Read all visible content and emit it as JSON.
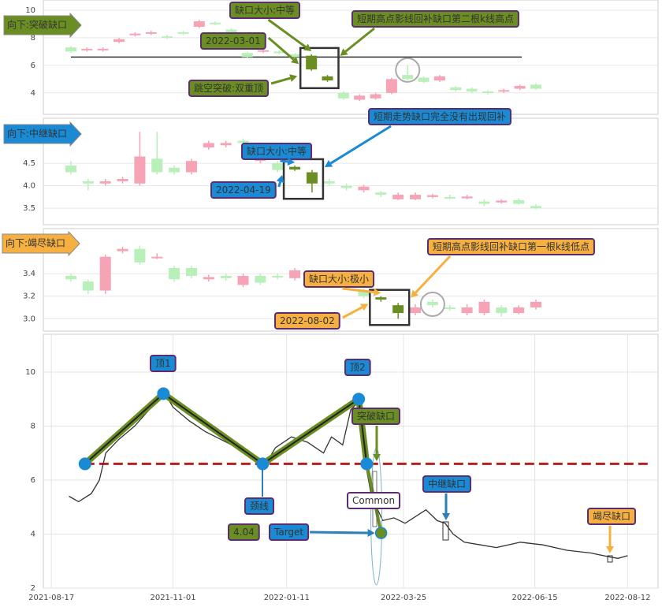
{
  "chart_data": [
    {
      "type": "candlestick",
      "label": "向下:突破缺口",
      "label_color": "#6b8e23",
      "open": [
        7.3,
        7.1,
        7.1,
        7.7,
        8.2,
        8.3,
        8.1,
        8.4,
        8.8,
        9.1,
        8.6,
        6.9,
        7.0,
        7.0,
        6.8,
        6.7,
        5.2,
        4.0,
        3.5,
        3.6,
        4.0,
        5.3,
        5.1,
        4.9,
        4.4,
        4.3,
        4.1,
        4.1,
        4.3,
        4.6
      ],
      "high": [
        7.4,
        7.3,
        7.3,
        8.0,
        8.4,
        8.5,
        8.2,
        8.5,
        9.3,
        9.2,
        8.7,
        7.0,
        7.2,
        7.1,
        6.9,
        6.8,
        5.3,
        4.1,
        3.9,
        4.0,
        5.1,
        6.0,
        5.2,
        5.3,
        4.5,
        4.4,
        4.2,
        4.3,
        4.6,
        4.7
      ],
      "low": [
        6.9,
        7.0,
        7.0,
        7.6,
        8.1,
        8.2,
        7.9,
        8.2,
        8.7,
        8.9,
        8.3,
        6.5,
        6.9,
        6.8,
        6.5,
        5.6,
        4.8,
        3.5,
        3.4,
        3.5,
        3.9,
        4.9,
        4.7,
        4.8,
        4.1,
        4.0,
        3.9,
        4.0,
        4.2,
        4.2
      ],
      "close": [
        7.0,
        7.2,
        7.2,
        7.9,
        8.3,
        8.4,
        8.0,
        8.3,
        9.2,
        9.0,
        8.4,
        6.6,
        7.1,
        6.9,
        6.6,
        5.7,
        4.9,
        3.6,
        3.8,
        3.9,
        5.0,
        5.0,
        4.8,
        5.2,
        4.2,
        4.1,
        4.0,
        4.2,
        4.5,
        4.3
      ],
      "up_color": "#f5a3b5",
      "down_color": "#b9f0b9",
      "gap_color": "#6b8e23",
      "gap_candles": [
        15,
        16
      ],
      "hline": 6.6,
      "ylim": [
        2.5,
        10
      ],
      "yticks": [
        4,
        6,
        8,
        10
      ],
      "annotations": {
        "gap_size": "缺口大小:中等",
        "gap_date": "2022-03-01",
        "pattern": "跳空突破:双重顶",
        "note": "短期高点影线回补缺口第二根k线高点"
      }
    },
    {
      "type": "candlestick",
      "label": "向下:中继缺口",
      "label_color": "#1a8ad4",
      "open": [
        4.45,
        4.1,
        4.05,
        4.1,
        4.05,
        4.6,
        4.4,
        4.3,
        4.85,
        4.9,
        5.0,
        4.55,
        4.5,
        4.42,
        4.3,
        4.1,
        4.0,
        3.9,
        3.85,
        3.7,
        3.7,
        3.75,
        3.75,
        3.72,
        3.65,
        3.63,
        3.68,
        3.55
      ],
      "high": [
        4.55,
        4.15,
        4.15,
        4.2,
        5.2,
        5.2,
        4.45,
        4.6,
        5.0,
        5.0,
        5.05,
        4.7,
        4.55,
        4.45,
        4.35,
        4.15,
        4.05,
        4.02,
        3.88,
        3.85,
        3.85,
        3.82,
        3.8,
        3.8,
        3.7,
        3.7,
        3.72,
        3.58
      ],
      "low": [
        4.25,
        3.9,
        4.0,
        4.05,
        4.0,
        4.25,
        4.25,
        4.25,
        4.8,
        4.85,
        4.9,
        4.5,
        4.3,
        4.33,
        3.85,
        4.0,
        3.9,
        3.85,
        3.75,
        3.68,
        3.68,
        3.72,
        3.7,
        3.7,
        3.55,
        3.6,
        3.58,
        3.48
      ],
      "close": [
        4.3,
        4.05,
        4.1,
        4.15,
        4.65,
        4.3,
        4.3,
        4.55,
        4.95,
        4.95,
        4.95,
        4.62,
        4.35,
        4.36,
        4.05,
        4.05,
        3.95,
        3.98,
        3.8,
        3.8,
        3.8,
        3.79,
        3.73,
        3.76,
        3.6,
        3.67,
        3.6,
        3.5
      ],
      "up_color": "#f5a3b5",
      "down_color": "#b9f0b9",
      "gap_color": "#6b8e23",
      "gap_candles": [
        13,
        14
      ],
      "ylim": [
        3.1,
        5.5
      ],
      "yticks": [
        3.5,
        {
          "value": 4,
          "label": "4.0"
        },
        4.5
      ],
      "annotations": {
        "gap_size": "缺口大小:中等",
        "gap_date": "2022-04-19",
        "note": "短期走势缺口完全没有出现回补"
      }
    },
    {
      "type": "candlestick",
      "label": "向下:竭尽缺口",
      "label_color": "#f5b041",
      "open": [
        3.38,
        3.33,
        3.25,
        3.6,
        3.62,
        3.55,
        3.45,
        3.45,
        3.35,
        3.38,
        3.3,
        3.38,
        3.38,
        3.36,
        3.42,
        3.36,
        3.4,
        3.25,
        3.19,
        3.12,
        3.05,
        3.15,
        3.1,
        3.05,
        3.05,
        3.1,
        3.05,
        3.1
      ],
      "high": [
        3.4,
        3.35,
        3.57,
        3.64,
        3.65,
        3.58,
        3.47,
        3.47,
        3.39,
        3.4,
        3.4,
        3.4,
        3.4,
        3.45,
        3.44,
        3.38,
        3.42,
        3.27,
        3.2,
        3.14,
        3.13,
        3.17,
        3.12,
        3.13,
        3.17,
        3.12,
        3.12,
        3.17
      ],
      "low": [
        3.33,
        3.22,
        3.22,
        3.58,
        3.48,
        3.53,
        3.33,
        3.36,
        3.33,
        3.34,
        3.28,
        3.3,
        3.35,
        3.34,
        3.33,
        3.32,
        3.36,
        3.18,
        3.15,
        3.0,
        3.03,
        3.1,
        3.07,
        3.03,
        3.03,
        3.02,
        3.04,
        3.08
      ],
      "close": [
        3.35,
        3.25,
        3.55,
        3.62,
        3.5,
        3.55,
        3.35,
        3.38,
        3.37,
        3.36,
        3.38,
        3.32,
        3.37,
        3.43,
        3.35,
        3.34,
        3.38,
        3.2,
        3.17,
        3.05,
        3.1,
        3.12,
        3.09,
        3.1,
        3.15,
        3.05,
        3.1,
        3.15
      ],
      "up_color": "#f5a3b5",
      "down_color": "#b9f0b9",
      "gap_color": "#6b8e23",
      "gap_candles": [
        18,
        19
      ],
      "ylim": [
        2.89,
        3.8
      ],
      "yticks": [
        {
          "value": 3,
          "label": "3.0"
        },
        3.2,
        3.4
      ],
      "annotations": {
        "gap_size": "缺口大小:极小",
        "gap_date": "2022-08-02",
        "note": "短期高点影线回补缺口第一根k线低点"
      }
    },
    {
      "type": "line",
      "color": "#333333",
      "x": [
        "2021-08-28",
        "2021-09-03",
        "2021-09-11",
        "2021-09-16",
        "2021-09-20",
        "2021-09-28",
        "2021-10-08",
        "2021-10-17",
        "2021-10-26",
        "2021-11-01",
        "2021-11-11",
        "2021-11-21",
        "2021-12-01",
        "2021-12-11",
        "2021-12-20",
        "2021-12-28",
        "2022-01-04",
        "2022-01-14",
        "2022-01-24",
        "2022-02-03",
        "2022-02-08",
        "2022-02-15",
        "2022-02-20",
        "2022-02-25",
        "2022-02-28",
        "2022-03-05",
        "2022-03-12",
        "2022-03-19",
        "2022-03-26",
        "2022-04-08",
        "2022-04-15",
        "2022-04-20",
        "2022-04-25",
        "2022-05-02",
        "2022-05-12",
        "2022-05-22",
        "2022-06-06",
        "2022-06-20",
        "2022-07-05",
        "2022-07-20",
        "2022-08-01",
        "2022-08-06",
        "2022-08-12"
      ],
      "values": [
        5.4,
        5.2,
        5.5,
        6.0,
        7.0,
        7.5,
        8.0,
        8.6,
        9.3,
        8.7,
        8.2,
        7.8,
        7.5,
        7.2,
        6.8,
        6.5,
        7.2,
        7.6,
        7.4,
        7.0,
        7.6,
        7.3,
        8.6,
        8.9,
        7.0,
        5.4,
        4.5,
        4.6,
        4.4,
        4.9,
        4.5,
        4.4,
        4.0,
        3.7,
        3.6,
        3.5,
        3.7,
        3.6,
        3.4,
        3.3,
        3.15,
        3.1,
        3.2
      ],
      "xlim": [
        "2021-08-12",
        "2022-08-31"
      ],
      "xticks": [
        "2021-08-17",
        "2021-11-01",
        "2022-01-11",
        "2022-03-25",
        "2022-06-15",
        "2022-08-12"
      ],
      "ylim": [
        2,
        11.4
      ],
      "yticks": [
        2,
        4,
        6,
        8,
        10
      ],
      "grid": true,
      "neckline": 6.6,
      "neckline_color": "#b22222",
      "pattern_x": [
        "2021-09-07",
        "2021-10-26",
        "2021-12-27",
        "2022-02-25",
        "2022-03-02"
      ],
      "pattern_values": [
        6.6,
        9.2,
        6.6,
        9.0,
        6.6
      ],
      "pattern_color": "#6b8e23",
      "point_color": "#1a8ad4",
      "target": 4.04,
      "target_x": "2022-03-11",
      "annotations": [
        "顶1",
        "顶2",
        "颈线",
        "突破缺口",
        "中继缺口",
        "竭尽缺口",
        "Target",
        "Common"
      ]
    }
  ]
}
